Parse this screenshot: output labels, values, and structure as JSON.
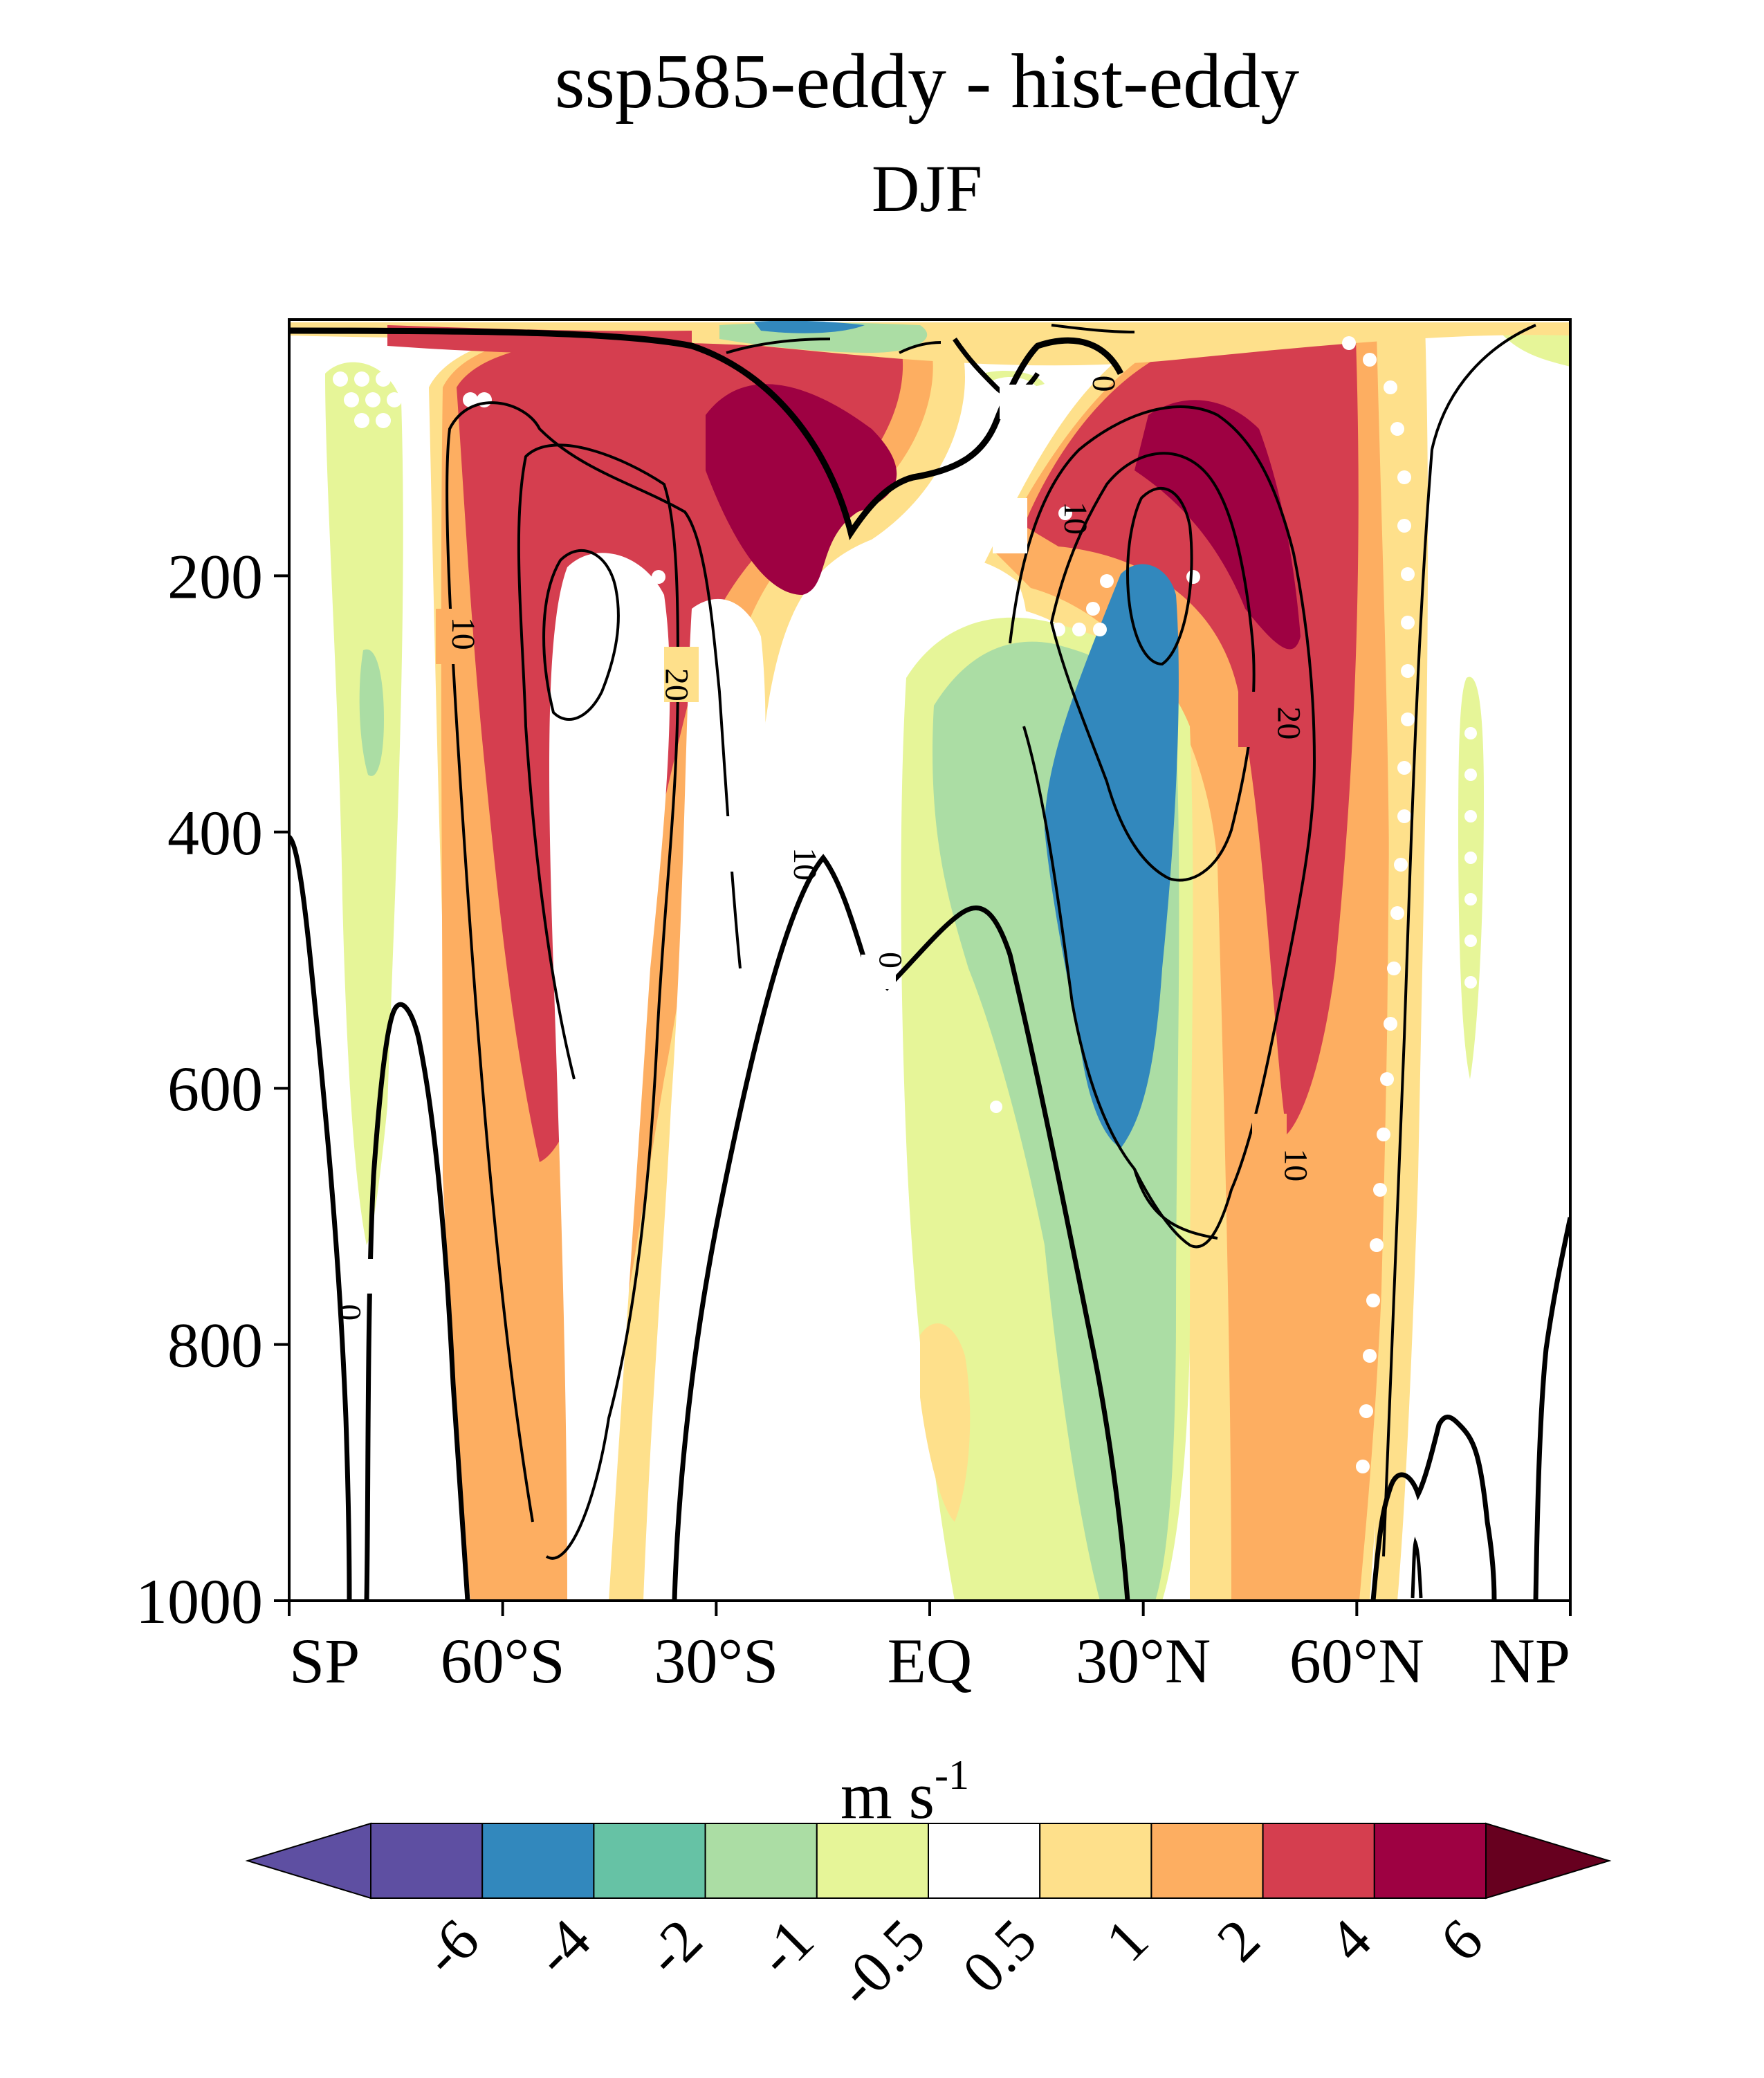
{
  "chart_data": {
    "type": "contour",
    "title": "ssp585-eddy - hist-eddy",
    "subtitle": "DJF",
    "x_tick_labels": [
      "SP",
      "60°S",
      "30°S",
      "EQ",
      "30°N",
      "60°N",
      "NP"
    ],
    "x_ticks": [
      -90,
      -60,
      -30,
      0,
      30,
      60,
      90
    ],
    "y_tick_labels": [
      "200",
      "400",
      "600",
      "800",
      "1000"
    ],
    "y_ticks": [
      200,
      400,
      600,
      800,
      1000
    ],
    "xlim": [
      -90,
      90
    ],
    "ylim": [
      1000,
      0
    ],
    "colorbar": {
      "unit_base": "m s",
      "unit_exp": "-1",
      "levels": [
        "-6",
        "-4",
        "-2",
        "-1",
        "-0.5",
        "0.5",
        "1",
        "2",
        "4",
        "6"
      ],
      "colors": [
        "#5e4fa2",
        "#3288bd",
        "#66c2a5",
        "#abdda4",
        "#e6f598",
        "#ffffff",
        "#fee08b",
        "#fdae61",
        "#d53e4f",
        "#9e0142"
      ],
      "under_color": "#5e4fa2",
      "over_color": "#67001f"
    },
    "contour_labels": [
      {
        "text": "10",
        "lat": -66,
        "p": 245
      },
      {
        "text": "20",
        "lat": -36,
        "p": 285
      },
      {
        "text": "10",
        "lat": -18,
        "p": 425
      },
      {
        "text": "0",
        "lat": -6,
        "p": 500
      },
      {
        "text": "0",
        "lat": -82,
        "p": 775
      },
      {
        "text": "0",
        "lat": 24,
        "p": 50
      },
      {
        "text": "10",
        "lat": 20,
        "p": 155
      },
      {
        "text": "20",
        "lat": 50,
        "p": 315
      },
      {
        "text": "10",
        "lat": 51,
        "p": 660
      }
    ]
  }
}
